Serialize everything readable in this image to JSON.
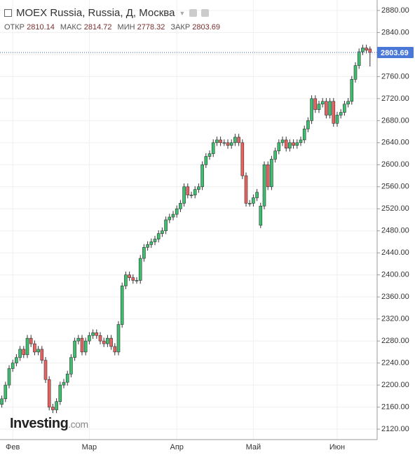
{
  "chart_data": {
    "type": "candlestick",
    "title": "MOEX Russia, Russia, Д, Москва",
    "ohlc_labels": [
      "ОТКР",
      "МАКС",
      "МИН",
      "ЗАКР"
    ],
    "watermark": [
      "Investing",
      ".com"
    ],
    "up_color": "#3cbf6e",
    "down_color": "#e8625f",
    "grid": true,
    "categories": [
      null,
      null,
      null,
      "Фев",
      null,
      null,
      null,
      null,
      null,
      null,
      null,
      null,
      null,
      null,
      null,
      null,
      null,
      null,
      null,
      null,
      null,
      null,
      null,
      null,
      "Мар",
      null,
      null,
      null,
      null,
      null,
      null,
      null,
      null,
      null,
      null,
      null,
      null,
      null,
      null,
      null,
      null,
      null,
      null,
      null,
      null,
      null,
      null,
      null,
      "Апр",
      null,
      null,
      null,
      null,
      null,
      null,
      null,
      null,
      null,
      null,
      null,
      null,
      null,
      null,
      null,
      null,
      null,
      null,
      null,
      null,
      "Май",
      null,
      null,
      null,
      null,
      null,
      null,
      null,
      null,
      null,
      null,
      null,
      null,
      null,
      null,
      null,
      null,
      null,
      null,
      null,
      null,
      null,
      null,
      "Июн",
      null,
      null,
      null,
      null,
      null,
      null,
      null,
      null,
      null
    ],
    "open": [
      2165,
      2175,
      2200,
      2230,
      2240,
      2250,
      2265,
      2255,
      2285,
      2275,
      2260,
      2265,
      2245,
      2210,
      2160,
      2155,
      2170,
      2200,
      2205,
      2220,
      2250,
      2280,
      2285,
      2260,
      2280,
      2290,
      2295,
      2290,
      2280,
      2275,
      2285,
      2270,
      2260,
      2310,
      2380,
      2400,
      2395,
      2390,
      2390,
      2430,
      2450,
      2455,
      2460,
      2465,
      2475,
      2480,
      2500,
      2505,
      2510,
      2520,
      2530,
      2560,
      2545,
      2545,
      2555,
      2560,
      2600,
      2615,
      2620,
      2640,
      2645,
      2640,
      2640,
      2635,
      2640,
      2650,
      2640,
      2580,
      2530,
      2530,
      2540,
      2490,
      2525,
      2600,
      2560,
      2610,
      2625,
      2640,
      2645,
      2630,
      2640,
      2635,
      2640,
      2645,
      2665,
      2680,
      2720,
      2700,
      2710,
      2715,
      2690,
      2715,
      2675,
      2690,
      2695,
      2710,
      2715,
      2755,
      2780,
      2805,
      2812,
      2810.14
    ],
    "high": [
      2181,
      2206,
      2236,
      2246,
      2256,
      2271,
      2271,
      2291,
      2291,
      2281,
      2271,
      2271,
      2251,
      2216,
      2166,
      2176,
      2206,
      2211,
      2226,
      2256,
      2286,
      2291,
      2291,
      2286,
      2296,
      2301,
      2301,
      2296,
      2286,
      2291,
      2291,
      2276,
      2316,
      2386,
      2406,
      2406,
      2401,
      2396,
      2436,
      2456,
      2461,
      2466,
      2471,
      2481,
      2486,
      2506,
      2511,
      2516,
      2526,
      2536,
      2566,
      2566,
      2551,
      2561,
      2566,
      2606,
      2621,
      2626,
      2646,
      2651,
      2651,
      2646,
      2646,
      2646,
      2656,
      2656,
      2646,
      2586,
      2536,
      2546,
      2556,
      2531,
      2606,
      2606,
      2616,
      2631,
      2646,
      2651,
      2651,
      2646,
      2646,
      2646,
      2651,
      2671,
      2686,
      2726,
      2726,
      2716,
      2721,
      2721,
      2721,
      2721,
      2696,
      2701,
      2716,
      2721,
      2761,
      2786,
      2811,
      2818,
      2818,
      2814.72
    ],
    "low": [
      2159,
      2169,
      2194,
      2224,
      2234,
      2244,
      2249,
      2249,
      2269,
      2254,
      2254,
      2239,
      2204,
      2154,
      2149,
      2149,
      2164,
      2194,
      2199,
      2214,
      2244,
      2274,
      2254,
      2254,
      2274,
      2284,
      2284,
      2274,
      2269,
      2269,
      2264,
      2254,
      2254,
      2304,
      2374,
      2389,
      2384,
      2384,
      2384,
      2424,
      2444,
      2449,
      2454,
      2459,
      2469,
      2474,
      2494,
      2499,
      2504,
      2514,
      2524,
      2539,
      2539,
      2539,
      2549,
      2554,
      2594,
      2609,
      2614,
      2634,
      2634,
      2634,
      2629,
      2629,
      2634,
      2634,
      2574,
      2524,
      2524,
      2524,
      2534,
      2485,
      2519,
      2554,
      2554,
      2604,
      2619,
      2634,
      2624,
      2624,
      2629,
      2629,
      2634,
      2639,
      2659,
      2674,
      2694,
      2694,
      2704,
      2684,
      2684,
      2669,
      2669,
      2684,
      2689,
      2704,
      2709,
      2749,
      2774,
      2799,
      2802,
      2778.32
    ],
    "close": [
      2175,
      2200,
      2230,
      2240,
      2250,
      2265,
      2255,
      2285,
      2275,
      2260,
      2265,
      2245,
      2210,
      2160,
      2155,
      2170,
      2200,
      2205,
      2220,
      2250,
      2280,
      2285,
      2260,
      2280,
      2290,
      2295,
      2290,
      2280,
      2275,
      2285,
      2270,
      2260,
      2310,
      2380,
      2400,
      2395,
      2390,
      2390,
      2430,
      2450,
      2455,
      2460,
      2465,
      2475,
      2480,
      2500,
      2505,
      2510,
      2520,
      2530,
      2560,
      2545,
      2545,
      2555,
      2560,
      2600,
      2615,
      2620,
      2640,
      2645,
      2640,
      2640,
      2635,
      2640,
      2650,
      2640,
      2580,
      2530,
      2530,
      2540,
      2550,
      2525,
      2600,
      2560,
      2610,
      2625,
      2640,
      2645,
      2630,
      2640,
      2635,
      2640,
      2645,
      2665,
      2680,
      2720,
      2700,
      2710,
      2715,
      2690,
      2715,
      2675,
      2690,
      2695,
      2710,
      2715,
      2755,
      2780,
      2805,
      2812,
      2808,
      2803.69
    ],
    "ylim": [
      2101,
      2899
    ],
    "yticks": [
      {
        "value": 2120,
        "label": "2120.00"
      },
      {
        "value": 2160,
        "label": "2160.00"
      },
      {
        "value": 2200,
        "label": "2200.00"
      },
      {
        "value": 2240,
        "label": "2240.00"
      },
      {
        "value": 2280,
        "label": "2280.00"
      },
      {
        "value": 2320,
        "label": "2320.00"
      },
      {
        "value": 2360,
        "label": "2360.00"
      },
      {
        "value": 2400,
        "label": "2400.00"
      },
      {
        "value": 2440,
        "label": "2440.00"
      },
      {
        "value": 2480,
        "label": "2480.00"
      },
      {
        "value": 2520,
        "label": "2520.00"
      },
      {
        "value": 2560,
        "label": "2560.00"
      },
      {
        "value": 2600,
        "label": "2600.00"
      },
      {
        "value": 2640,
        "label": "2640.00"
      },
      {
        "value": 2680,
        "label": "2680.00"
      },
      {
        "value": 2720,
        "label": "2720.00"
      },
      {
        "value": 2760,
        "label": "2760.00"
      },
      {
        "value": 2800,
        "label": "2800.00"
      },
      {
        "value": 2840,
        "label": "2840.00"
      },
      {
        "value": 2880,
        "label": "2880.00"
      }
    ]
  }
}
